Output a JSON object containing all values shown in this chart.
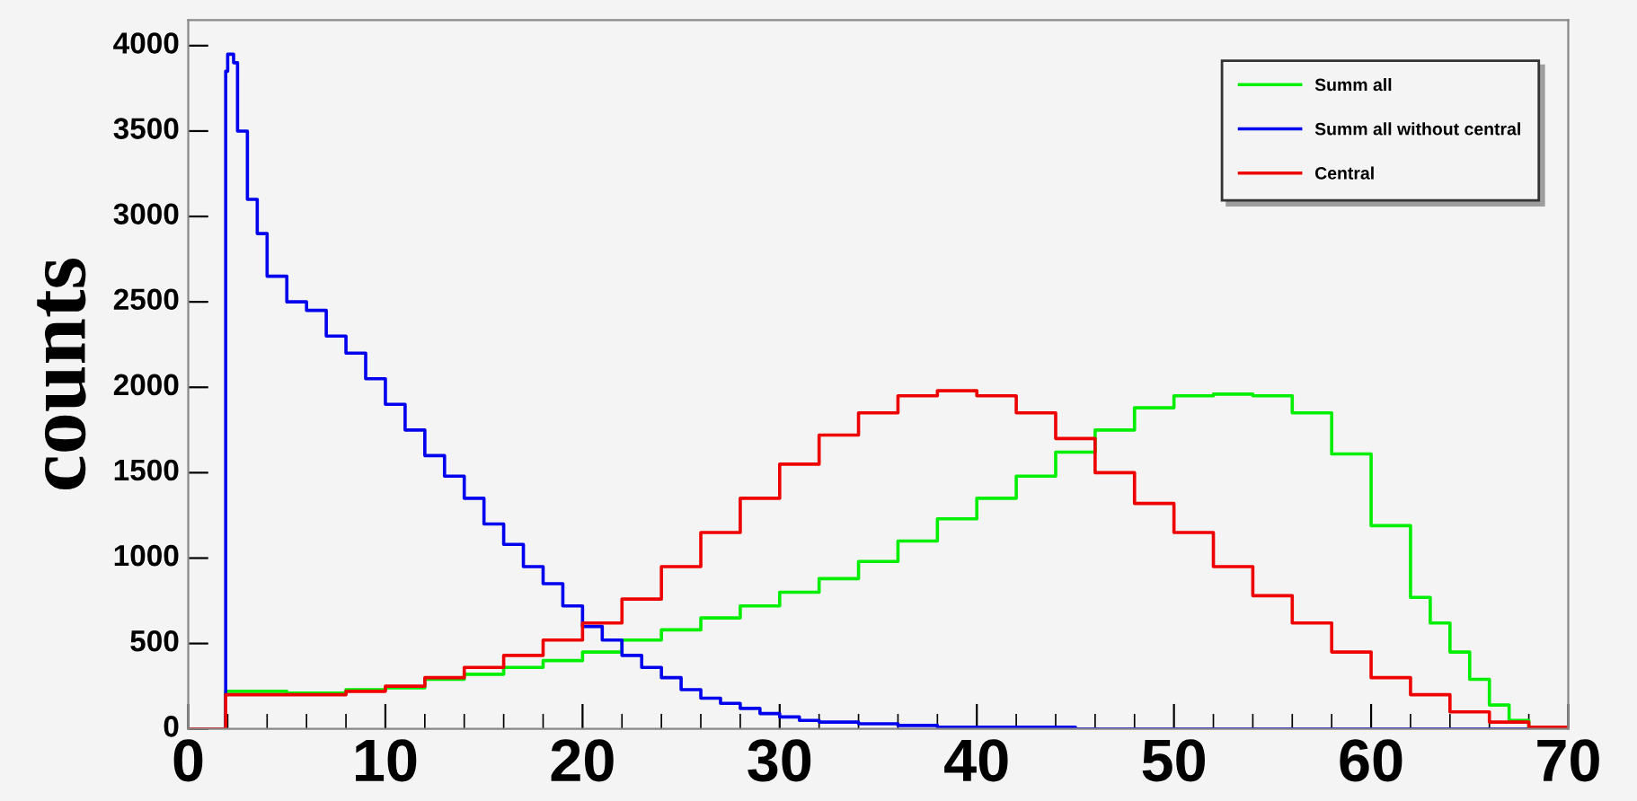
{
  "chart_data": {
    "type": "step",
    "ylabel": "counts",
    "xlim": [
      0,
      70
    ],
    "ylim": [
      0,
      4150
    ],
    "xticks": [
      0,
      10,
      20,
      30,
      40,
      50,
      60,
      70
    ],
    "yticks": [
      0,
      500,
      1000,
      1500,
      2000,
      2500,
      3000,
      3500,
      4000
    ],
    "grid": false,
    "legend": "top right",
    "series": [
      {
        "name": "Summ all",
        "color": "#00ee00",
        "x": [
          0,
          1.9,
          2,
          5,
          8,
          10,
          12,
          14,
          16,
          18,
          20,
          22,
          24,
          26,
          28,
          30,
          32,
          34,
          36,
          38,
          40,
          42,
          44,
          46,
          48,
          50,
          52,
          54,
          56,
          58,
          60,
          62,
          63,
          64,
          65,
          66,
          67,
          68,
          69,
          70
        ],
        "values": [
          0,
          220,
          220,
          210,
          230,
          240,
          290,
          320,
          360,
          400,
          450,
          520,
          580,
          650,
          720,
          800,
          880,
          980,
          1100,
          1230,
          1350,
          1480,
          1620,
          1750,
          1880,
          1950,
          1960,
          1950,
          1850,
          1610,
          1190,
          770,
          620,
          450,
          290,
          140,
          50,
          10,
          0,
          0
        ]
      },
      {
        "name": "Summ all without central",
        "color": "#0000ee",
        "x": [
          0,
          1.9,
          2,
          2.3,
          2.5,
          3,
          3.5,
          4,
          5,
          6,
          7,
          8,
          9,
          10,
          11,
          12,
          13,
          14,
          15,
          16,
          17,
          18,
          19,
          20,
          21,
          22,
          23,
          24,
          25,
          26,
          27,
          28,
          29,
          30,
          31,
          32,
          34,
          36,
          38,
          40,
          45,
          50,
          70
        ],
        "values": [
          0,
          3850,
          3950,
          3900,
          3500,
          3100,
          2900,
          2650,
          2500,
          2450,
          2300,
          2200,
          2050,
          1900,
          1750,
          1600,
          1480,
          1350,
          1200,
          1080,
          950,
          850,
          720,
          600,
          520,
          430,
          360,
          300,
          230,
          180,
          150,
          120,
          90,
          70,
          50,
          40,
          30,
          20,
          10,
          10,
          0,
          0,
          0
        ]
      },
      {
        "name": "Central",
        "color": "#ee0000",
        "x": [
          0,
          1.9,
          2,
          8,
          10,
          12,
          14,
          16,
          18,
          20,
          22,
          24,
          26,
          28,
          30,
          32,
          34,
          36,
          38,
          40,
          42,
          44,
          46,
          48,
          50,
          52,
          54,
          56,
          58,
          60,
          62,
          64,
          66,
          68,
          70
        ],
        "values": [
          0,
          200,
          200,
          220,
          250,
          300,
          360,
          430,
          520,
          620,
          760,
          950,
          1150,
          1350,
          1550,
          1720,
          1850,
          1950,
          1980,
          1950,
          1850,
          1700,
          1500,
          1320,
          1150,
          950,
          780,
          620,
          450,
          300,
          200,
          100,
          40,
          10,
          0
        ]
      }
    ]
  }
}
